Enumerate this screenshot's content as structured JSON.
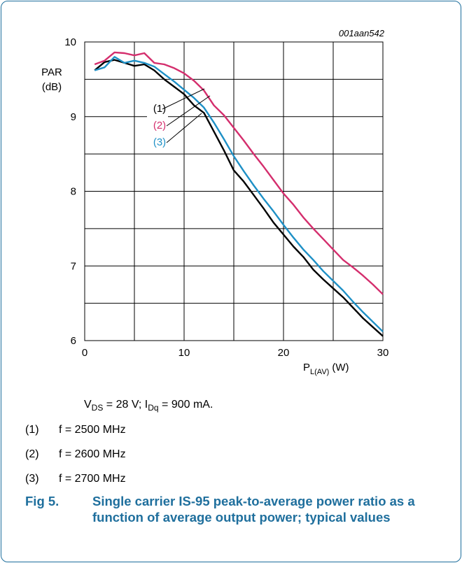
{
  "figure": {
    "ref_code": "001aan542",
    "caption_number": "Fig 5.",
    "caption_text": "Single carrier IS-95 peak-to-average power ratio as a function of average output power; typical values"
  },
  "conditions": {
    "vds_symbol": "V",
    "vds_sub": "DS",
    "vds_value": " = 28 V; ",
    "idq_symbol": "I",
    "idq_sub": "Dq",
    "idq_value": " = 900 mA."
  },
  "legend": [
    {
      "index": "(1)",
      "text": "f = 2500 MHz"
    },
    {
      "index": "(2)",
      "text": "f = 2600 MHz"
    },
    {
      "index": "(3)",
      "text": "f = 2700 MHz"
    }
  ],
  "chart_data": {
    "type": "line",
    "ylabel_line1": "PAR",
    "ylabel_line2": "(dB)",
    "xlabel_main": "P",
    "xlabel_sub": "L(AV)",
    "xlabel_unit": "(W)",
    "xlim": [
      0,
      30
    ],
    "ylim": [
      6,
      10
    ],
    "x_ticks": [
      0,
      10,
      20,
      30
    ],
    "y_ticks": [
      6,
      7,
      8,
      9,
      10
    ],
    "grid": true,
    "series": [
      {
        "name": "(1)",
        "color": "#000000",
        "points": [
          [
            1,
            9.62
          ],
          [
            2,
            9.73
          ],
          [
            3,
            9.76
          ],
          [
            4,
            9.72
          ],
          [
            5,
            9.68
          ],
          [
            6,
            9.7
          ],
          [
            7,
            9.62
          ],
          [
            8,
            9.5
          ],
          [
            9,
            9.4
          ],
          [
            10,
            9.3
          ],
          [
            11,
            9.15
          ],
          [
            12,
            9.05
          ],
          [
            13,
            8.8
          ],
          [
            14,
            8.55
          ],
          [
            15,
            8.28
          ],
          [
            16,
            8.13
          ],
          [
            17,
            7.95
          ],
          [
            18,
            7.77
          ],
          [
            19,
            7.58
          ],
          [
            20,
            7.42
          ],
          [
            21,
            7.26
          ],
          [
            22,
            7.12
          ],
          [
            23,
            6.95
          ],
          [
            24,
            6.82
          ],
          [
            25,
            6.7
          ],
          [
            26,
            6.58
          ],
          [
            27,
            6.44
          ],
          [
            28,
            6.3
          ],
          [
            29,
            6.18
          ],
          [
            30,
            6.06
          ]
        ]
      },
      {
        "name": "(2)",
        "color": "#d42e6d",
        "points": [
          [
            1,
            9.7
          ],
          [
            2,
            9.75
          ],
          [
            3,
            9.86
          ],
          [
            4,
            9.85
          ],
          [
            5,
            9.82
          ],
          [
            6,
            9.85
          ],
          [
            7,
            9.72
          ],
          [
            8,
            9.7
          ],
          [
            9,
            9.65
          ],
          [
            10,
            9.58
          ],
          [
            11,
            9.48
          ],
          [
            12,
            9.35
          ],
          [
            13,
            9.15
          ],
          [
            14,
            9.02
          ],
          [
            15,
            8.85
          ],
          [
            16,
            8.68
          ],
          [
            17,
            8.5
          ],
          [
            18,
            8.33
          ],
          [
            19,
            8.15
          ],
          [
            20,
            7.97
          ],
          [
            21,
            7.82
          ],
          [
            22,
            7.65
          ],
          [
            23,
            7.5
          ],
          [
            24,
            7.36
          ],
          [
            25,
            7.22
          ],
          [
            26,
            7.08
          ],
          [
            27,
            6.98
          ],
          [
            28,
            6.87
          ],
          [
            29,
            6.75
          ],
          [
            30,
            6.62
          ]
        ]
      },
      {
        "name": "(3)",
        "color": "#1e90c6",
        "points": [
          [
            1,
            9.62
          ],
          [
            2,
            9.66
          ],
          [
            3,
            9.8
          ],
          [
            4,
            9.72
          ],
          [
            5,
            9.75
          ],
          [
            6,
            9.72
          ],
          [
            7,
            9.67
          ],
          [
            8,
            9.57
          ],
          [
            9,
            9.47
          ],
          [
            10,
            9.36
          ],
          [
            11,
            9.25
          ],
          [
            12,
            9.12
          ],
          [
            13,
            8.92
          ],
          [
            14,
            8.7
          ],
          [
            15,
            8.47
          ],
          [
            16,
            8.27
          ],
          [
            17,
            8.08
          ],
          [
            18,
            7.9
          ],
          [
            19,
            7.73
          ],
          [
            20,
            7.55
          ],
          [
            21,
            7.38
          ],
          [
            22,
            7.22
          ],
          [
            23,
            7.08
          ],
          [
            24,
            6.93
          ],
          [
            25,
            6.8
          ],
          [
            26,
            6.67
          ],
          [
            27,
            6.52
          ],
          [
            28,
            6.38
          ],
          [
            29,
            6.25
          ],
          [
            30,
            6.12
          ]
        ]
      }
    ]
  }
}
